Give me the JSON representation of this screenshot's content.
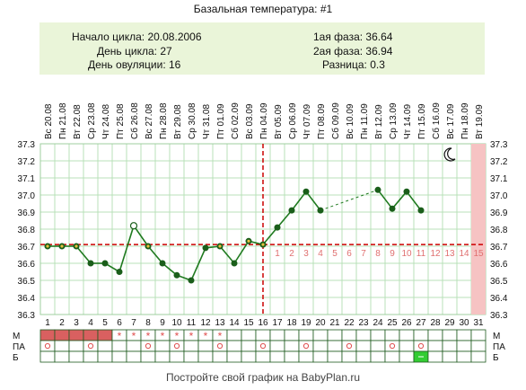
{
  "title": "Базальная температура: #1",
  "info": {
    "cycle_start": "Начало цикла: 20.08.2006",
    "cycle_day": "День цикла: 27",
    "ovulation_day": "День овуляции: 16",
    "phase1": "1ая фаза: 36.64",
    "phase2": "2ая фаза: 36.94",
    "difference": "Разница: 0.3"
  },
  "footer": "Постройте свой график на BabyPlan.ru",
  "colors": {
    "line": "#1f7a1f",
    "marker": "#1a5e1a",
    "dashed_ref": "#cc0000",
    "luteal_days": "#e07070",
    "grid": "#b8e0b8",
    "highlight": "#f6c3c3",
    "menses": "#d96060",
    "star": "#e05050",
    "green_cell": "#33cc33"
  },
  "chart_data": {
    "type": "line",
    "title": "Базальная температура: #1",
    "ylim": [
      36.3,
      37.3
    ],
    "y_ticks": [
      "37.3",
      "37.2",
      "37.1",
      "37.0",
      "36.9",
      "36.8",
      "36.7",
      "36.6",
      "36.5",
      "36.4",
      "36.3"
    ],
    "dates": [
      "Вс 20.08",
      "Пн 21.08",
      "Вт 22.08",
      "Ср 23.08",
      "Чт 24.08",
      "Пт 25.08",
      "Сб 26.08",
      "Вс 27.08",
      "Пн 28.08",
      "Вт 29.08",
      "Ср 30.08",
      "Чт 31.08",
      "Пт 01.09",
      "Сб 02.09",
      "Вс 03.09",
      "Пн 04.09",
      "Вт 05.09",
      "Ср 06.09",
      "Чт 07.09",
      "Пт 08.09",
      "Сб 09.09",
      "Вс 10.09",
      "Пн 11.09",
      "Вт 12.09",
      "Ср 13.09",
      "Чт 14.09",
      "Пт 15.09",
      "Сб 16.09",
      "Вс 17.09",
      "Пн 18.09",
      "Вт 19.09"
    ],
    "days": [
      "1",
      "2",
      "3",
      "4",
      "5",
      "6",
      "7",
      "8",
      "9",
      "10",
      "11",
      "12",
      "13",
      "14",
      "15",
      "16",
      "17",
      "18",
      "19",
      "20",
      "21",
      "22",
      "23",
      "24",
      "25",
      "26",
      "27",
      "28",
      "29",
      "30",
      "31"
    ],
    "values": [
      36.7,
      36.7,
      36.7,
      36.6,
      36.6,
      36.55,
      36.82,
      36.7,
      36.6,
      36.53,
      36.5,
      36.69,
      36.7,
      36.6,
      36.73,
      36.71,
      36.81,
      36.91,
      37.02,
      36.91,
      null,
      null,
      null,
      37.03,
      36.92,
      37.02,
      36.91,
      null,
      null,
      null,
      null
    ],
    "open_markers": [
      7
    ],
    "coverline": 36.71,
    "ovulation_day": 16,
    "luteal_numbers": [
      "1",
      "2",
      "3",
      "4",
      "5",
      "6",
      "7",
      "8",
      "9",
      "10",
      "11",
      "12",
      "13",
      "14",
      "15"
    ],
    "highlight_day": 31,
    "moon_icon": "moon-icon",
    "rows": {
      "labels": [
        "М",
        "ПА",
        "Б"
      ],
      "menses_days": [
        1,
        2,
        3,
        4,
        5
      ],
      "star_days": [
        6,
        7,
        8,
        9,
        10,
        11,
        12,
        13
      ],
      "pa_days": [
        1,
        4,
        8,
        10,
        13,
        16,
        19,
        22,
        25,
        27
      ],
      "b_days": [
        27
      ]
    }
  }
}
